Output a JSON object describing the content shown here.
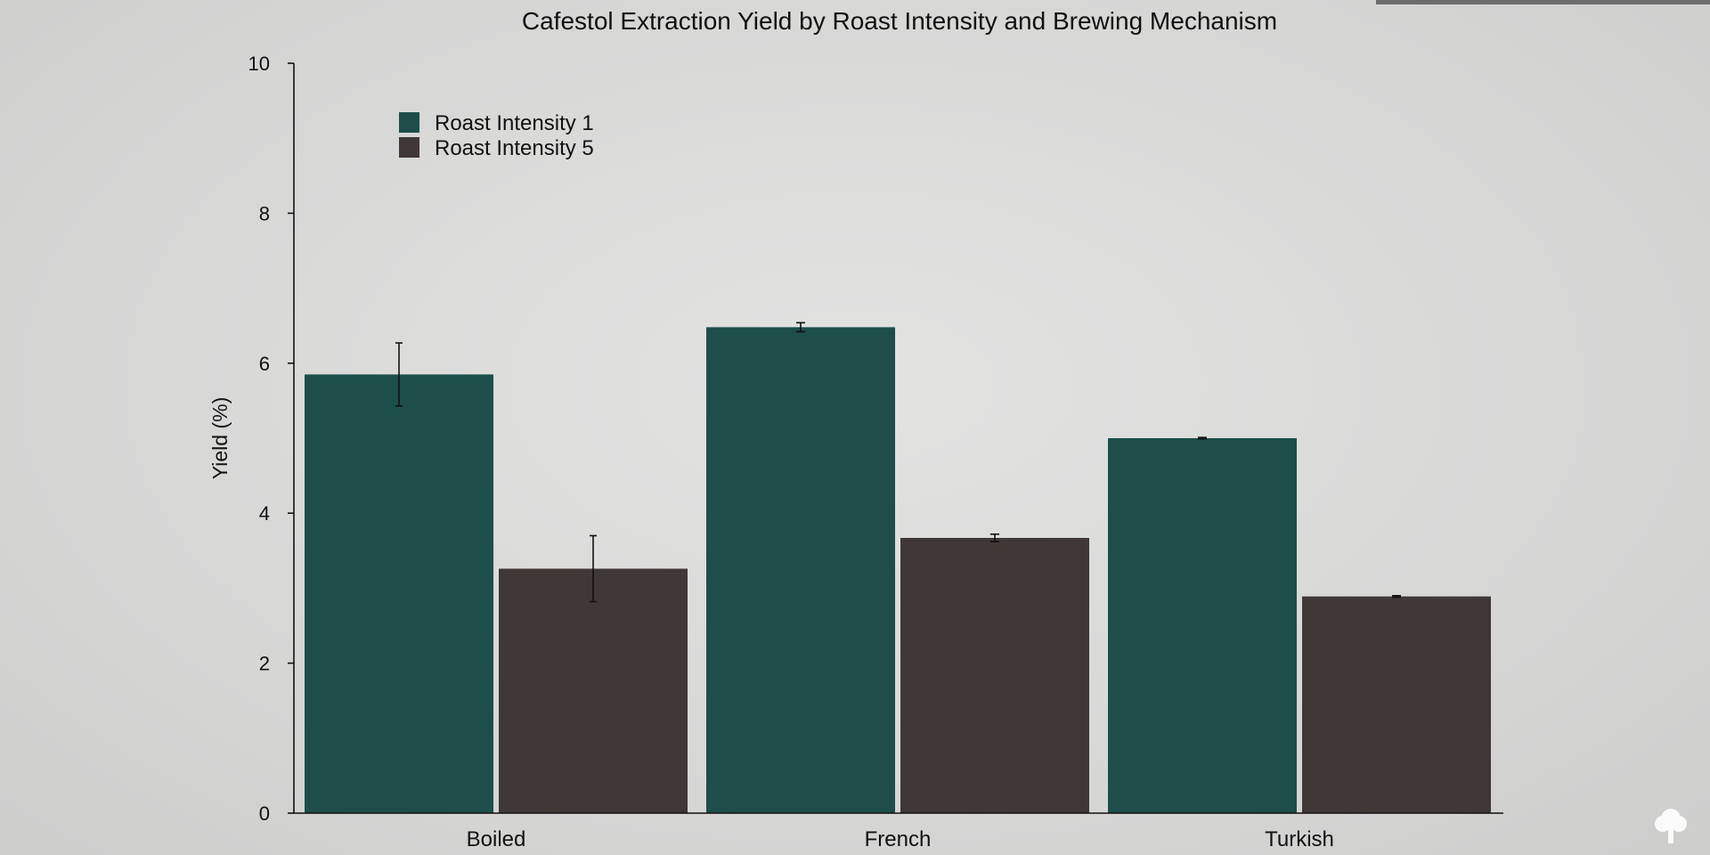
{
  "chart_data": {
    "type": "bar",
    "title": "Cafestol Extraction Yield by Roast Intensity and Brewing Mechanism",
    "xlabel": "",
    "ylabel": "Yield (%)",
    "ylim": [
      0,
      10
    ],
    "yticks": [
      0,
      2,
      4,
      6,
      8,
      10
    ],
    "categories": [
      "Boiled",
      "French",
      "Turkish"
    ],
    "series": [
      {
        "name": "Roast Intensity 1",
        "color": "#1d4e4a",
        "values": [
          5.85,
          6.48,
          5.0
        ],
        "errors": [
          0.42,
          0.06,
          0.01
        ]
      },
      {
        "name": "Roast Intensity 5",
        "color": "#403836",
        "values": [
          3.26,
          3.67,
          2.89
        ],
        "errors": [
          0.44,
          0.05,
          0.01
        ]
      }
    ],
    "legend_position": "top-left",
    "grid": false
  },
  "decor": {
    "corner_icon": "tree-icon",
    "accent_strip_color": "#6d6d6d"
  }
}
